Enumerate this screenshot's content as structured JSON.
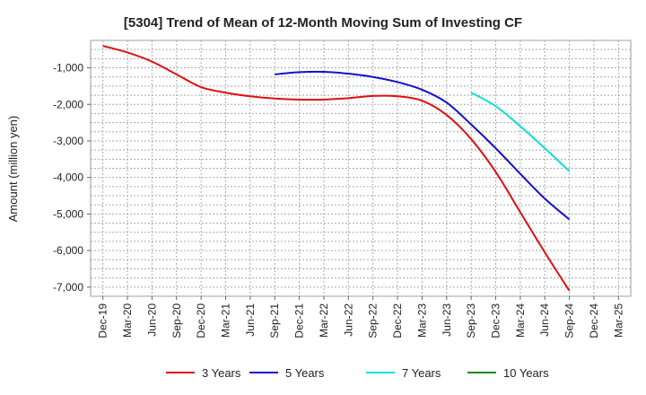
{
  "chart_data": {
    "type": "line",
    "title": "[5304]  Trend of Mean of 12-Month Moving Sum of Investing CF",
    "xlabel": "",
    "ylabel": "Amount (million yen)",
    "ylim": [
      -7250,
      -250
    ],
    "yticks": [
      -1000,
      -2000,
      -3000,
      -4000,
      -5000,
      -6000,
      -7000
    ],
    "ytick_labels": [
      "-1,000",
      "-2,000",
      "-3,000",
      "-4,000",
      "-5,000",
      "-6,000",
      "-7,000"
    ],
    "categories": [
      "Dec-19",
      "Mar-20",
      "Jun-20",
      "Sep-20",
      "Dec-20",
      "Mar-21",
      "Jun-21",
      "Sep-21",
      "Dec-21",
      "Mar-22",
      "Jun-22",
      "Sep-22",
      "Dec-22",
      "Mar-23",
      "Jun-23",
      "Sep-23",
      "Dec-23",
      "Mar-24",
      "Jun-24",
      "Sep-24",
      "Dec-24",
      "Mar-25"
    ],
    "grid": true,
    "legend_position": "bottom",
    "series": [
      {
        "name": "3 Years",
        "color": "#dd1111",
        "values": [
          -400,
          -580,
          -830,
          -1180,
          -1530,
          -1680,
          -1780,
          -1840,
          -1870,
          -1870,
          -1830,
          -1770,
          -1780,
          -1900,
          -2290,
          -2950,
          -3850,
          -4950,
          -6050,
          -7100,
          null,
          null
        ]
      },
      {
        "name": "5 Years",
        "color": "#1111cc",
        "values": [
          null,
          null,
          null,
          null,
          null,
          null,
          null,
          -1180,
          -1120,
          -1110,
          -1160,
          -1250,
          -1390,
          -1600,
          -1950,
          -2550,
          -3200,
          -3900,
          -4580,
          -5150,
          null,
          null
        ]
      },
      {
        "name": "7 Years",
        "color": "#11dddd",
        "values": [
          null,
          null,
          null,
          null,
          null,
          null,
          null,
          null,
          null,
          null,
          null,
          null,
          null,
          null,
          null,
          -1680,
          -2050,
          -2600,
          -3200,
          -3830,
          null,
          null
        ]
      },
      {
        "name": "10 Years",
        "color": "#118811",
        "values": [
          null,
          null,
          null,
          null,
          null,
          null,
          null,
          null,
          null,
          null,
          null,
          null,
          null,
          null,
          null,
          null,
          null,
          null,
          null,
          null,
          null,
          null
        ]
      }
    ]
  }
}
